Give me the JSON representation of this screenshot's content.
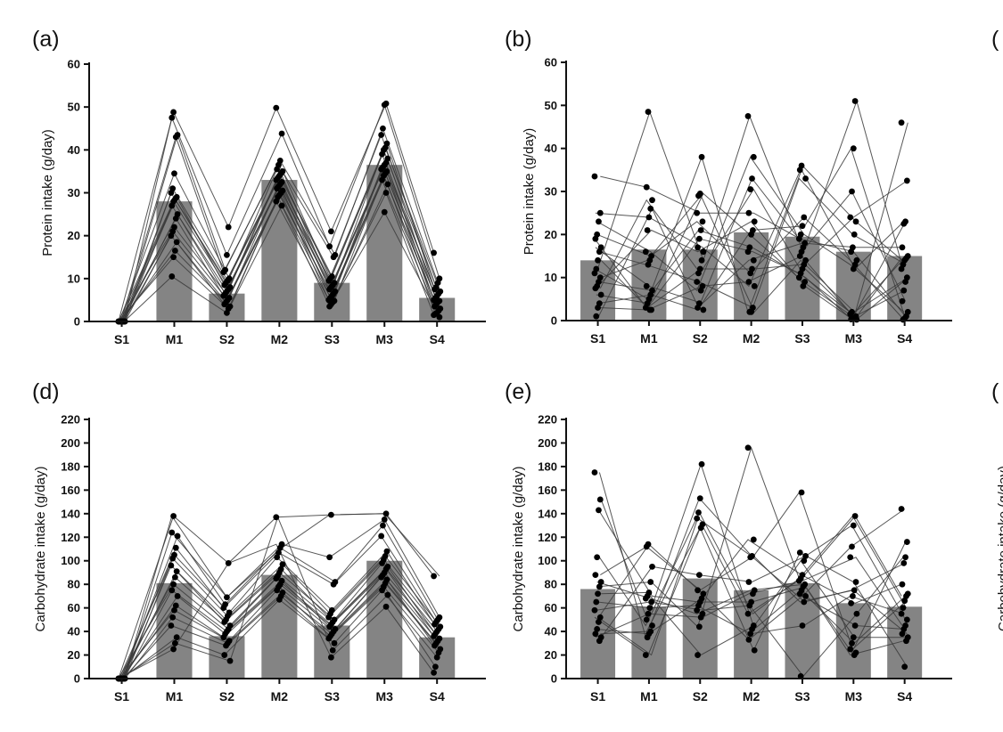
{
  "chart_data": [
    {
      "panel": "(a)",
      "type": "bar",
      "ylabel": "Protein intake (g/day)",
      "categories": [
        "S1",
        "M1",
        "S2",
        "M2",
        "S3",
        "M3",
        "S4"
      ],
      "values": [
        0,
        28,
        6.5,
        33,
        9,
        36.5,
        5.5
      ],
      "ylim": [
        0,
        60
      ],
      "yticks": [
        0,
        10,
        20,
        30,
        40,
        50,
        60
      ],
      "points": [
        [
          0,
          0,
          0,
          0,
          0,
          0,
          0,
          0,
          0,
          0,
          0,
          0,
          0,
          0,
          0,
          0,
          0,
          0,
          0,
          0
        ],
        [
          48.8,
          47.5,
          43.5,
          43,
          34.5,
          31,
          30,
          29,
          28.5,
          28,
          27,
          25,
          24,
          22,
          21,
          20,
          18.5,
          16.5,
          15,
          10.5
        ],
        [
          22,
          15.5,
          12,
          11.5,
          10,
          9.5,
          9,
          8.5,
          8,
          7.5,
          7,
          6.5,
          6,
          5.5,
          5,
          4.5,
          4,
          3.5,
          3,
          2
        ],
        [
          49.8,
          43.8,
          37.5,
          36.5,
          35.5,
          35,
          34.5,
          34,
          33.5,
          33,
          32.5,
          32,
          31.5,
          31,
          30.5,
          30,
          29.5,
          29,
          28,
          27
        ],
        [
          21,
          17.5,
          15.5,
          15,
          10.5,
          10,
          9.5,
          9,
          8.5,
          8,
          7.5,
          7,
          6.5,
          6,
          5.5,
          5,
          4.8,
          4.5,
          4,
          3.5
        ],
        [
          50.8,
          50.5,
          45,
          43.5,
          41.5,
          40.5,
          40,
          39,
          38,
          37,
          36.5,
          36,
          35.5,
          35,
          34.5,
          34,
          33,
          32,
          30,
          25.5
        ],
        [
          16,
          10,
          9,
          8,
          7.5,
          7,
          6.5,
          6,
          5.5,
          5,
          4.8,
          4.5,
          4,
          3.5,
          3,
          2.5,
          2,
          1.8,
          1.5,
          1
        ]
      ]
    },
    {
      "panel": "(b)",
      "type": "bar",
      "ylabel": "Protein intake (g/day)",
      "categories": [
        "S1",
        "M1",
        "S2",
        "M2",
        "S3",
        "M3",
        "S4"
      ],
      "values": [
        14,
        16.5,
        16.5,
        20.5,
        19.5,
        16,
        15
      ],
      "ylim": [
        0,
        60
      ],
      "yticks": [
        0,
        10,
        20,
        30,
        40,
        50,
        60
      ],
      "points": [
        [
          33.5,
          25,
          23,
          20,
          19,
          17,
          16,
          14,
          12,
          11,
          10,
          9,
          8,
          7.5,
          6,
          4,
          3,
          1
        ],
        [
          48.5,
          31,
          28,
          26,
          24,
          21,
          16,
          15,
          14,
          13,
          8,
          7,
          6,
          5,
          4,
          3,
          2.5,
          2.5
        ],
        [
          38,
          29.5,
          29,
          25,
          23,
          21,
          19,
          17,
          16,
          14,
          12,
          11,
          9,
          8,
          7,
          4,
          3,
          2.5
        ],
        [
          47.5,
          38,
          33,
          30.5,
          25,
          23,
          21,
          20,
          17,
          16,
          14,
          12,
          11,
          9,
          8,
          3,
          2,
          2
        ],
        [
          36,
          35,
          33,
          24,
          22,
          20,
          19,
          18,
          17,
          16,
          15,
          14,
          13,
          12,
          11,
          10,
          9,
          8
        ],
        [
          51,
          40,
          30,
          24,
          23,
          20,
          17,
          16,
          14,
          13,
          12,
          2,
          1.5,
          1,
          0.5,
          0.5,
          0.3,
          0.2
        ],
        [
          46,
          32.5,
          23,
          22.5,
          17,
          15,
          14.5,
          14,
          13,
          12,
          10,
          9,
          7,
          4.5,
          2,
          1,
          0.5,
          0.2
        ]
      ]
    },
    {
      "panel": "(d)",
      "type": "bar",
      "ylabel": "Carbohydrate intake (g/day)",
      "categories": [
        "S1",
        "M1",
        "S2",
        "M2",
        "S3",
        "M3",
        "S4"
      ],
      "values": [
        0,
        81,
        36,
        88,
        45,
        100,
        35
      ],
      "ylim": [
        0,
        220
      ],
      "yticks": [
        0,
        20,
        40,
        60,
        80,
        100,
        120,
        140,
        160,
        180,
        200,
        220
      ],
      "points": [
        [
          0,
          0,
          0,
          0,
          0,
          0,
          0,
          0,
          0,
          0,
          0,
          0,
          0,
          0,
          0,
          0,
          0,
          0,
          0,
          0
        ],
        [
          138,
          124,
          121,
          111,
          105,
          102,
          96,
          91,
          86,
          80,
          75,
          70,
          62,
          58,
          52,
          45,
          35,
          30,
          25
        ],
        [
          98,
          69,
          63,
          60,
          56,
          53,
          50,
          48,
          45,
          42,
          40,
          38,
          35,
          32,
          30,
          28,
          20,
          15
        ],
        [
          137,
          114,
          111,
          107,
          103,
          97,
          93,
          90,
          87,
          85,
          83,
          80,
          78,
          75,
          73,
          70,
          67
        ],
        [
          139,
          103,
          82,
          80,
          58,
          55,
          52,
          50,
          48,
          46,
          44,
          42,
          40,
          38,
          36,
          34,
          30,
          24,
          18
        ],
        [
          140,
          135,
          130,
          121,
          108,
          104,
          101,
          98,
          95,
          93,
          90,
          88,
          86,
          84,
          81,
          78,
          75,
          71,
          61
        ],
        [
          87,
          52,
          50,
          48,
          46,
          44,
          42,
          40,
          38,
          36,
          34,
          32,
          30,
          28,
          25,
          22,
          18,
          10,
          5
        ]
      ]
    },
    {
      "panel": "(e)",
      "type": "bar",
      "ylabel": "Carbohydrate intake (g/day)",
      "categories": [
        "S1",
        "M1",
        "S2",
        "M2",
        "S3",
        "M3",
        "S4"
      ],
      "values": [
        76,
        61,
        85,
        75,
        81,
        64,
        61
      ],
      "ylim": [
        0,
        220
      ],
      "yticks": [
        0,
        20,
        40,
        60,
        80,
        100,
        120,
        140,
        160,
        180,
        200,
        220
      ],
      "points": [
        [
          175,
          152,
          143,
          103,
          88,
          82,
          78,
          72,
          65,
          58,
          52,
          48,
          42,
          38,
          35,
          32
        ],
        [
          114,
          112,
          95,
          82,
          73,
          70,
          68,
          65,
          60,
          55,
          50,
          45,
          40,
          38,
          35,
          20
        ],
        [
          182,
          153,
          141,
          136,
          131,
          128,
          88,
          75,
          72,
          68,
          65,
          62,
          58,
          55,
          52,
          44,
          20
        ],
        [
          196,
          118,
          104,
          103,
          82,
          75,
          72,
          65,
          62,
          55,
          45,
          42,
          38,
          33,
          24
        ],
        [
          158,
          107,
          104,
          100,
          88,
          85,
          83,
          80,
          78,
          75,
          72,
          70,
          65,
          45,
          2
        ],
        [
          138,
          130,
          112,
          103,
          82,
          75,
          70,
          64,
          55,
          45,
          35,
          30,
          25,
          22,
          20
        ],
        [
          144,
          116,
          103,
          98,
          80,
          72,
          70,
          66,
          60,
          55,
          50,
          45,
          42,
          38,
          35,
          32,
          10
        ]
      ]
    }
  ],
  "partial_panels": [
    "(",
    "("
  ],
  "partial_ylabel": "Carbohydrate intake (g/day)"
}
